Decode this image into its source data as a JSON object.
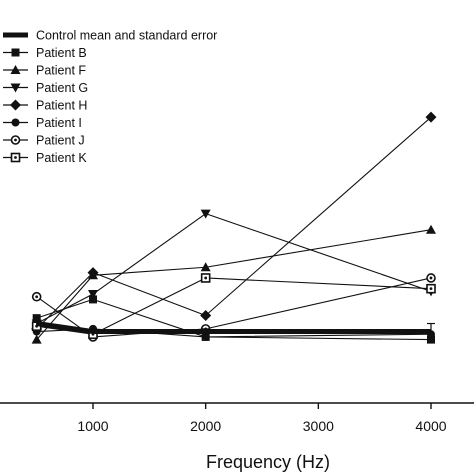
{
  "chart_data": {
    "type": "line",
    "xlabel": "Frequency (Hz)",
    "ylabel": "",
    "xlim": [
      0,
      4250
    ],
    "ylim": [
      0,
      100
    ],
    "x_ticks": [
      1000,
      2000,
      3000,
      4000
    ],
    "x_tick_labels": [
      "1000",
      "2000",
      "3000",
      "4000"
    ],
    "y_ticks_labeled": false,
    "grid": false,
    "legend_position": "top-left",
    "x": [
      500,
      1000,
      2000,
      4000
    ],
    "series": [
      {
        "name": "Control mean and standard error",
        "marker": "bold-line",
        "values": [
          11,
          8,
          8,
          8
        ],
        "error": [
          1,
          1,
          1,
          3
        ]
      },
      {
        "name": "Patient B",
        "marker": "square",
        "values": [
          13,
          20,
          6,
          5
        ]
      },
      {
        "name": "Patient F",
        "marker": "triangle-up",
        "values": [
          5,
          29,
          32,
          46
        ]
      },
      {
        "name": "Patient G",
        "marker": "triangle-down",
        "values": [
          11,
          22,
          52,
          23
        ]
      },
      {
        "name": "Patient H",
        "marker": "diamond",
        "values": [
          9,
          30,
          14,
          88
        ]
      },
      {
        "name": "Patient I",
        "marker": "circle",
        "values": [
          8,
          9,
          6,
          7
        ]
      },
      {
        "name": "Patient J",
        "marker": "circle-open-dot",
        "values": [
          21,
          6,
          9,
          28
        ]
      },
      {
        "name": "Patient K",
        "marker": "square-open-dot",
        "values": [
          10,
          7,
          28,
          24
        ]
      }
    ]
  }
}
